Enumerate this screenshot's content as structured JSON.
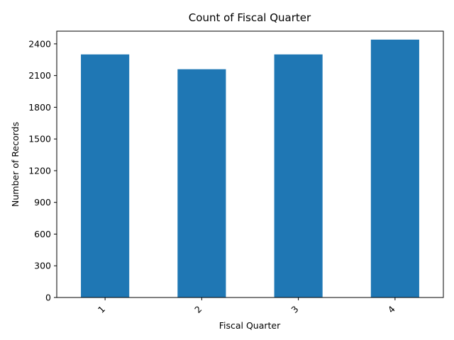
{
  "chart_data": {
    "type": "bar",
    "title": "Count of Fiscal Quarter",
    "xlabel": "Fiscal Quarter",
    "ylabel": "Number of Records",
    "categories": [
      "1",
      "2",
      "3",
      "4"
    ],
    "values": [
      2300,
      2160,
      2300,
      2440
    ],
    "ylim": [
      0,
      2520
    ],
    "yticks": [
      "0",
      "300",
      "600",
      "900",
      "1200",
      "1500",
      "1800",
      "2100",
      "2400"
    ],
    "bar_color": "#1f77b4",
    "grid": false,
    "legend": "none"
  }
}
